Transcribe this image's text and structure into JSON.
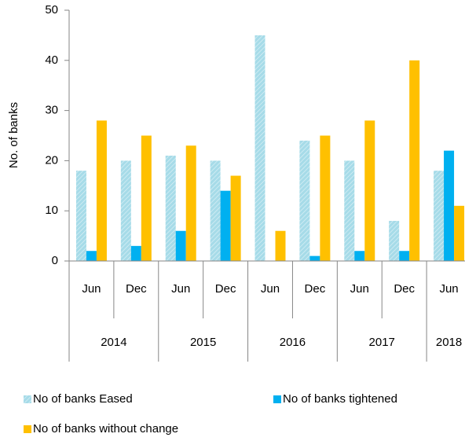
{
  "chart_data": {
    "type": "bar",
    "y_label": "No. of banks",
    "groups": [
      {
        "label": "2014",
        "categories": [
          "Jun",
          "Dec"
        ]
      },
      {
        "label": "2015",
        "categories": [
          "Jun",
          "Dec"
        ]
      },
      {
        "label": "2016",
        "categories": [
          "Jun",
          "Dec"
        ]
      },
      {
        "label": "2017",
        "categories": [
          "Jun",
          "Dec"
        ]
      },
      {
        "label": "2018",
        "categories": [
          "Jun"
        ]
      }
    ],
    "series": [
      {
        "name": "No of banks Eased",
        "color": "#a6dbe8",
        "pattern": true,
        "values": [
          18,
          20,
          21,
          20,
          45,
          24,
          20,
          8,
          18
        ]
      },
      {
        "name": "No of banks tightened",
        "color": "#00b0f0",
        "values": [
          2,
          3,
          6,
          14,
          0,
          1,
          2,
          2,
          22
        ]
      },
      {
        "name": "No of banks without change",
        "color": "#ffc000",
        "values": [
          28,
          25,
          23,
          17,
          6,
          25,
          28,
          40,
          11
        ]
      }
    ],
    "ylim": [
      0,
      50
    ],
    "yticks": [
      0,
      10,
      20,
      30,
      40,
      50
    ],
    "grid": false
  }
}
